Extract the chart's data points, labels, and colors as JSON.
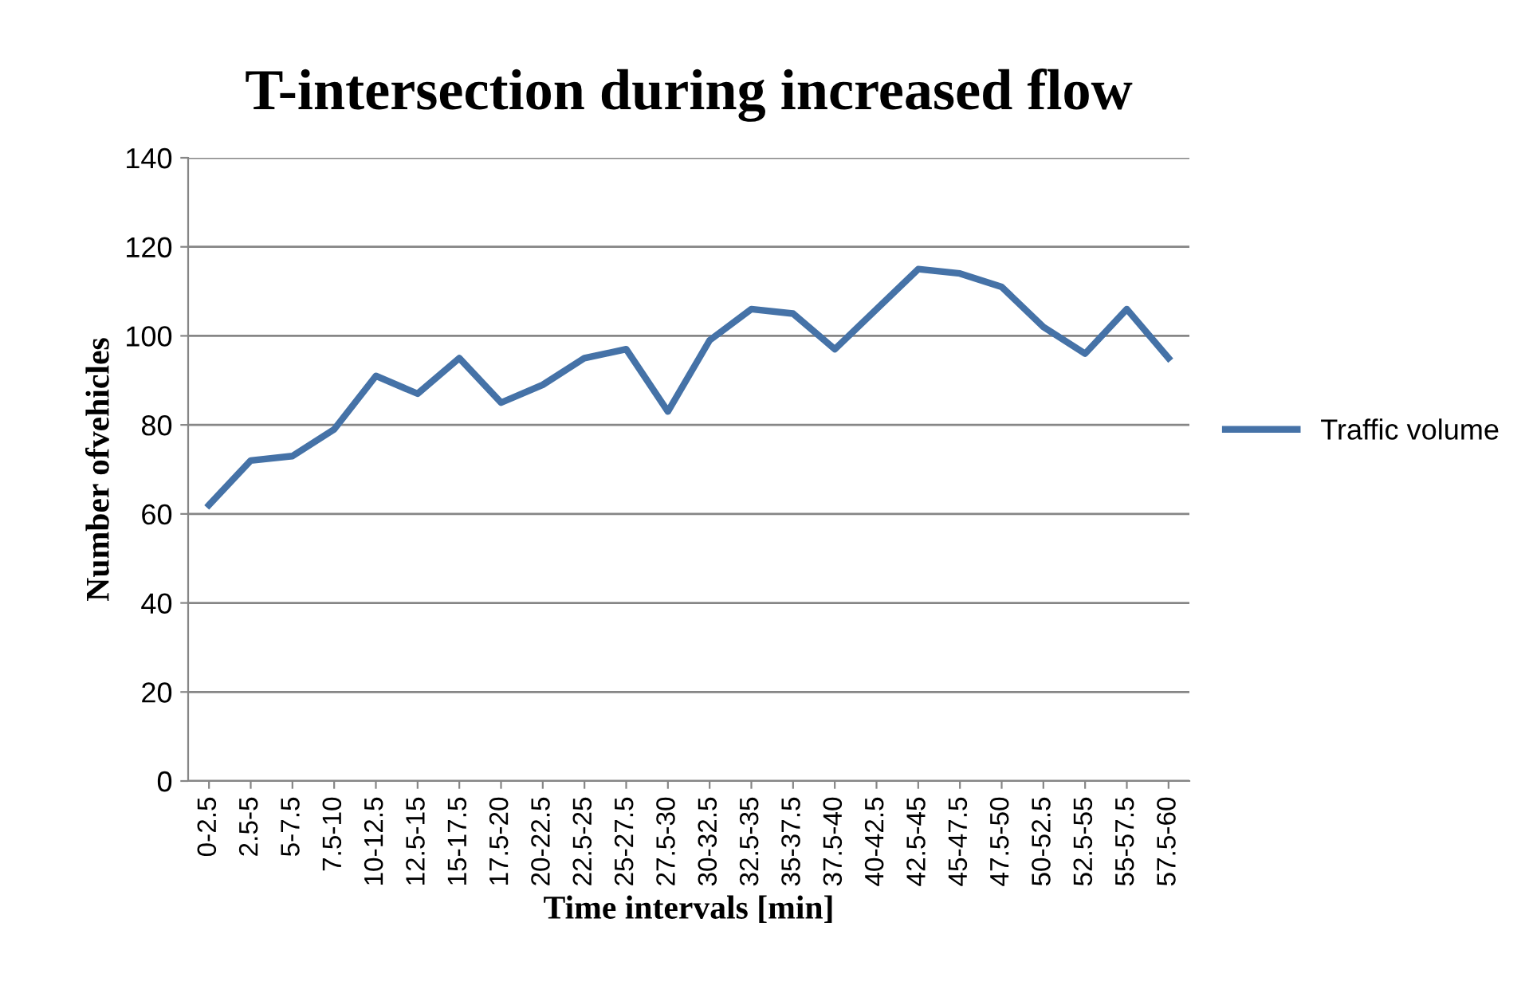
{
  "chart_data": {
    "type": "line",
    "title": "T-intersection during increased flow",
    "xlabel": "Time intervals [min]",
    "ylabel": "Number ofvehicles",
    "categories": [
      "0-2.5",
      "2.5-5",
      "5-7.5",
      "7.5-10",
      "10-12.5",
      "12.5-15",
      "15-17.5",
      "17.5-20",
      "20-22.5",
      "22.5-25",
      "25-27.5",
      "27.5-30",
      "30-32.5",
      "32.5-35",
      "35-37.5",
      "37.5-40",
      "40-42.5",
      "42.5-45",
      "45-47.5",
      "47.5-50",
      "50-52.5",
      "52.5-55",
      "55-57.5",
      "57.5-60"
    ],
    "series": [
      {
        "name": "Traffic volume",
        "color": "#4572a7",
        "values": [
          62,
          72,
          73,
          79,
          91,
          87,
          95,
          85,
          89,
          95,
          97,
          83,
          99,
          106,
          105,
          97,
          106,
          115,
          114,
          111,
          102,
          96,
          106,
          95
        ]
      }
    ],
    "ylim": [
      0,
      140
    ],
    "yticks": [
      0,
      20,
      40,
      60,
      80,
      100,
      120,
      140
    ],
    "grid": "y",
    "legend": "right",
    "marker": "none",
    "line_style": "solid"
  }
}
